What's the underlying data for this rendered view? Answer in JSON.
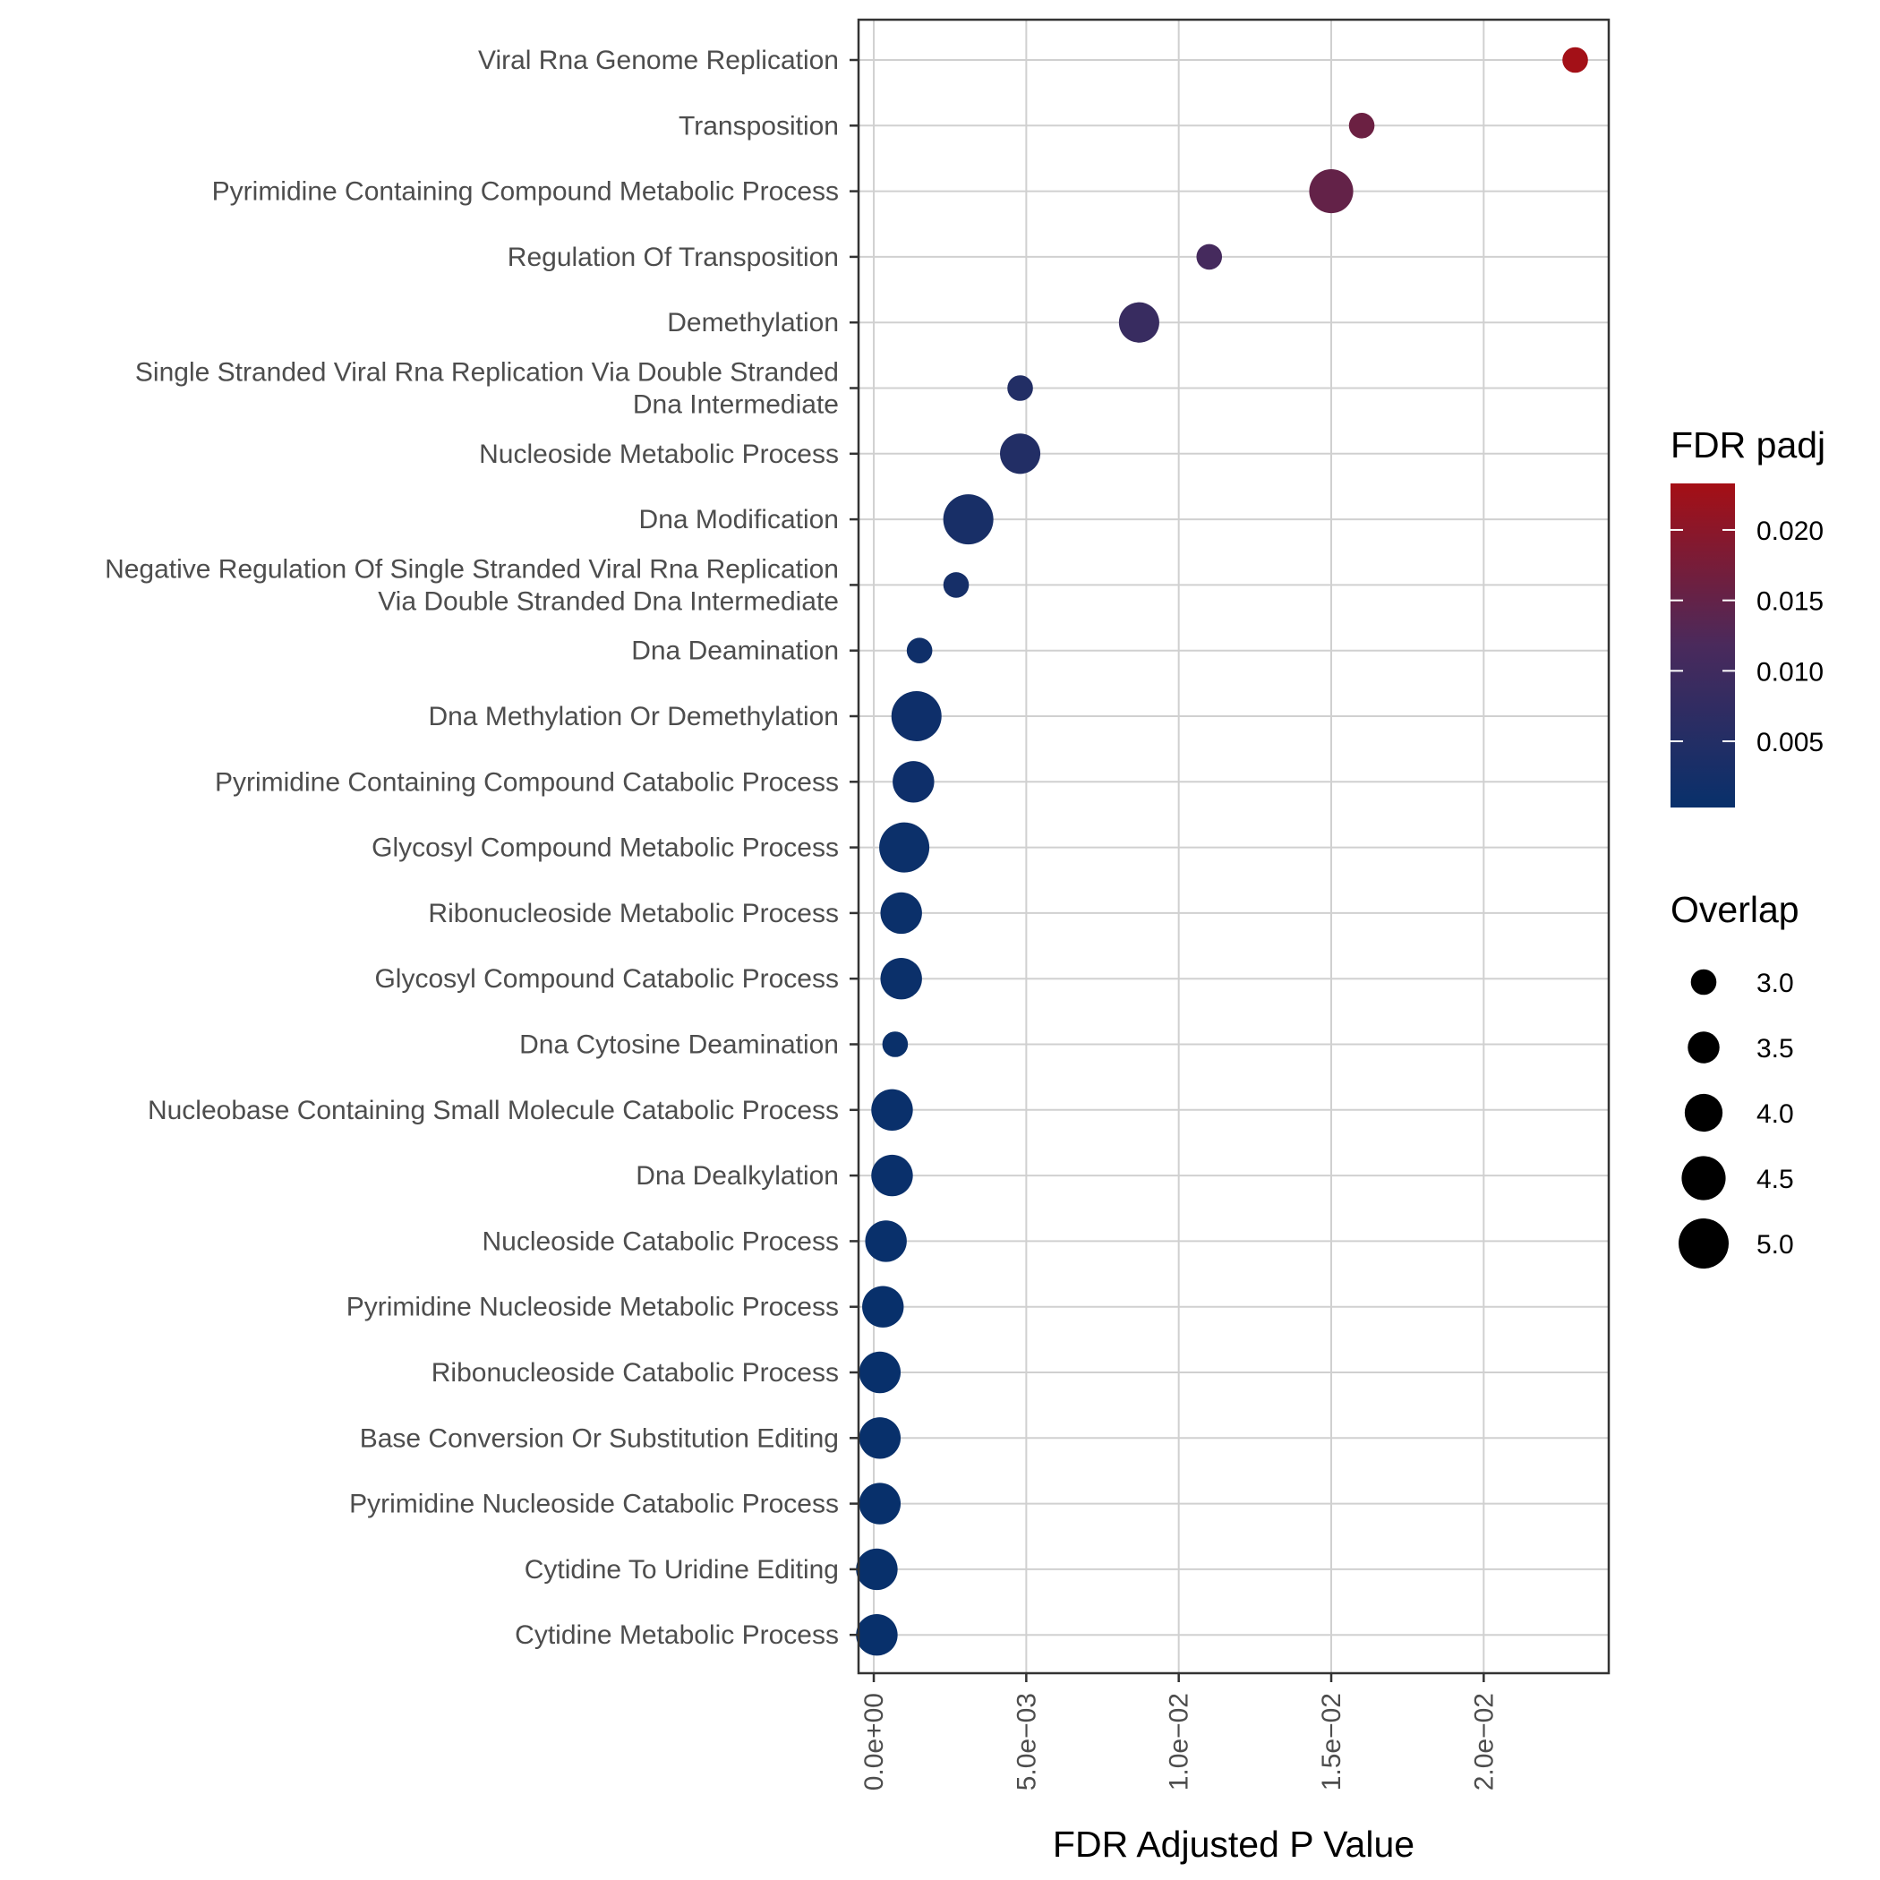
{
  "chart_data": {
    "type": "scatter",
    "xlabel": "FDR Adjusted P Value",
    "ylabel": "",
    "xlim": [
      -0.0005,
      0.0241
    ],
    "x_ticks": [
      0,
      0.005,
      0.01,
      0.015,
      0.02
    ],
    "x_tick_labels": [
      "0.0e+00",
      "5.0e−03",
      "1.0e−02",
      "1.5e−02",
      "2.0e−02"
    ],
    "grid": true,
    "color_legend": {
      "title": "FDR padj",
      "min": 0.0003,
      "max": 0.0233,
      "low_color": "#08306b",
      "mid_color": "#4a2a5c",
      "high_color": "#a50f15",
      "ticks": [
        0.005,
        0.01,
        0.015,
        0.02
      ],
      "tick_labels": [
        "0.005",
        "0.010",
        "0.015",
        "0.020"
      ],
      "placement": "right"
    },
    "size_legend": {
      "title": "Overlap",
      "values": [
        3.0,
        3.5,
        4.0,
        4.5,
        5.0
      ],
      "labels": [
        "3.0",
        "3.5",
        "4.0",
        "4.5",
        "5.0"
      ],
      "placement": "right"
    },
    "points": [
      {
        "label": [
          "Viral Rna Genome Replication"
        ],
        "x": 0.023,
        "overlap": 3
      },
      {
        "label": [
          "Transposition"
        ],
        "x": 0.016,
        "overlap": 3
      },
      {
        "label": [
          "Pyrimidine Containing Compound Metabolic Process"
        ],
        "x": 0.015,
        "overlap": 4.5
      },
      {
        "label": [
          "Regulation Of Transposition"
        ],
        "x": 0.011,
        "overlap": 3
      },
      {
        "label": [
          "Demethylation"
        ],
        "x": 0.0087,
        "overlap": 4.2
      },
      {
        "label": [
          "Single Stranded Viral Rna Replication Via Double Stranded",
          "Dna Intermediate"
        ],
        "x": 0.0048,
        "overlap": 3
      },
      {
        "label": [
          "Nucleoside Metabolic Process"
        ],
        "x": 0.0048,
        "overlap": 4.2
      },
      {
        "label": [
          "Dna Modification"
        ],
        "x": 0.0031,
        "overlap": 5
      },
      {
        "label": [
          "Negative Regulation Of Single Stranded Viral Rna Replication",
          "Via Double Stranded Dna Intermediate"
        ],
        "x": 0.0027,
        "overlap": 3
      },
      {
        "label": [
          "Dna Deamination"
        ],
        "x": 0.0015,
        "overlap": 3
      },
      {
        "label": [
          "Dna Methylation Or Demethylation"
        ],
        "x": 0.0014,
        "overlap": 5
      },
      {
        "label": [
          "Pyrimidine Containing Compound Catabolic Process"
        ],
        "x": 0.0013,
        "overlap": 4.3
      },
      {
        "label": [
          "Glycosyl Compound Metabolic Process"
        ],
        "x": 0.001,
        "overlap": 5
      },
      {
        "label": [
          "Ribonucleoside Metabolic Process"
        ],
        "x": 0.0009,
        "overlap": 4.3
      },
      {
        "label": [
          "Glycosyl Compound Catabolic Process"
        ],
        "x": 0.0009,
        "overlap": 4.3
      },
      {
        "label": [
          "Dna Cytosine Deamination"
        ],
        "x": 0.0007,
        "overlap": 3
      },
      {
        "label": [
          "Nucleobase Containing Small Molecule Catabolic Process"
        ],
        "x": 0.0006,
        "overlap": 4.3
      },
      {
        "label": [
          "Dna Dealkylation"
        ],
        "x": 0.0006,
        "overlap": 4.3
      },
      {
        "label": [
          "Nucleoside Catabolic Process"
        ],
        "x": 0.0004,
        "overlap": 4.3
      },
      {
        "label": [
          "Pyrimidine Nucleoside Metabolic Process"
        ],
        "x": 0.0003,
        "overlap": 4.3
      },
      {
        "label": [
          "Ribonucleoside Catabolic Process"
        ],
        "x": 0.0002,
        "overlap": 4.3
      },
      {
        "label": [
          "Base Conversion Or Substitution Editing"
        ],
        "x": 0.0002,
        "overlap": 4.3
      },
      {
        "label": [
          "Pyrimidine Nucleoside Catabolic Process"
        ],
        "x": 0.0002,
        "overlap": 4.3
      },
      {
        "label": [
          "Cytidine To Uridine Editing"
        ],
        "x": 0.0001,
        "overlap": 4.3
      },
      {
        "label": [
          "Cytidine Metabolic Process"
        ],
        "x": 0.0001,
        "overlap": 4.3
      }
    ]
  }
}
